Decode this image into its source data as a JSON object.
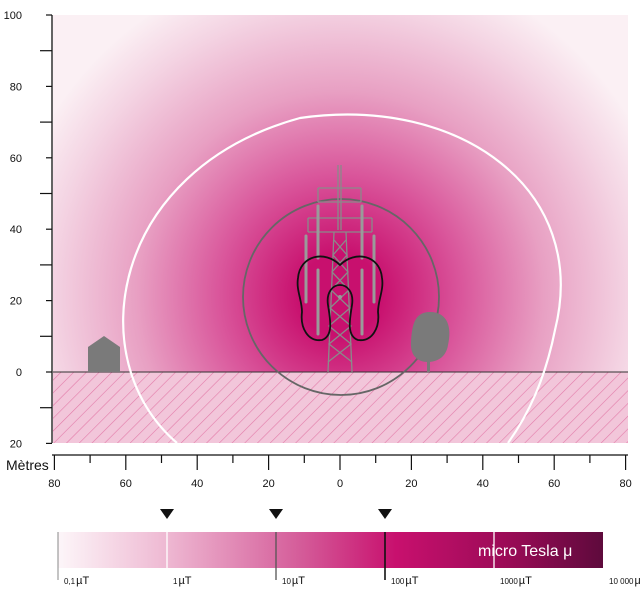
{
  "y_axis": {
    "ticks": [
      {
        "label": "100",
        "value": 100
      },
      {
        "label": "80",
        "value": 80
      },
      {
        "label": "60",
        "value": 60
      },
      {
        "label": "40",
        "value": 40
      },
      {
        "label": "20",
        "value": 20
      },
      {
        "label": "0",
        "value": 0
      },
      {
        "label": "20",
        "value": -20
      }
    ]
  },
  "x_axis": {
    "title": "Mètres",
    "ticks": [
      {
        "label": "80",
        "value": -80
      },
      {
        "label": "60",
        "value": -60
      },
      {
        "label": "40",
        "value": -40
      },
      {
        "label": "20",
        "value": -20
      },
      {
        "label": "0",
        "value": 0
      },
      {
        "label": "20",
        "value": 20
      },
      {
        "label": "40",
        "value": 40
      },
      {
        "label": "60",
        "value": 60
      },
      {
        "label": "80",
        "value": 80
      }
    ]
  },
  "legend": {
    "title": "micro Tesla μ",
    "scale": [
      {
        "num": "0,1",
        "unit": "µT"
      },
      {
        "num": "1",
        "unit": "µT"
      },
      {
        "num": "10",
        "unit": "µT"
      },
      {
        "num": "100",
        "unit": "µT"
      },
      {
        "num": "1000",
        "unit": "µT"
      },
      {
        "num": "10 000",
        "unit": "µT"
      }
    ]
  },
  "colors": {
    "field_max": "#c8106e",
    "field_min": "#fbf0f4",
    "legend_dark": "#5e0a3c",
    "ground_hatch": "#e27aa8",
    "gray_objects": "#7a7a7a",
    "contour_white": "#ffffff",
    "contour_gray": "#666666"
  }
}
